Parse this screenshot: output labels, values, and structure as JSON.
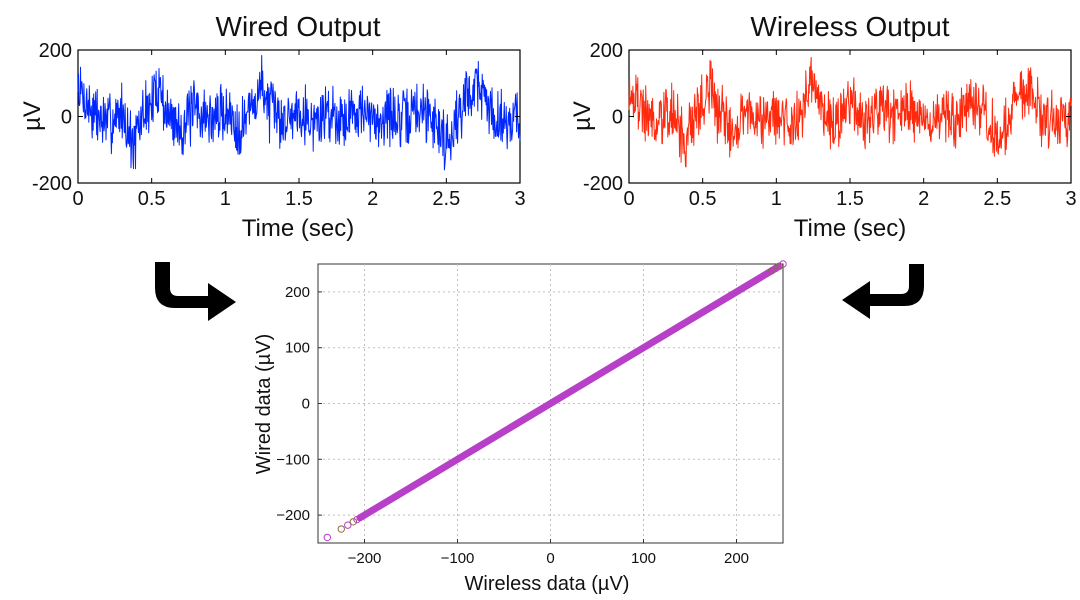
{
  "colors": {
    "wired": "#0026ff",
    "wireless": "#ff2a0e",
    "scatter_main": "#b83fc8",
    "scatter_alt": "#8a6d3b",
    "grid": "#bfbfbf",
    "arrow": "#000000"
  },
  "icons": {
    "left_arrow": "curved-arrow-right-icon",
    "right_arrow": "curved-arrow-left-icon"
  },
  "chart_data": [
    {
      "type": "line",
      "title": "Wired Output",
      "xlabel": "Time (sec)",
      "ylabel": "µV",
      "xlim": [
        0,
        3
      ],
      "ylim": [
        -200,
        200
      ],
      "xticks": [
        "0",
        "0.5",
        "1",
        "1.5",
        "2",
        "2.5",
        "3"
      ],
      "yticks": [
        "-200",
        "0",
        "200"
      ],
      "grid": false,
      "series": [
        {
          "color": "#0026ff",
          "x": [
            0,
            0.1,
            0.2,
            0.3,
            0.38,
            0.45,
            0.5,
            0.55,
            0.6,
            0.7,
            0.8,
            0.9,
            1.0,
            1.1,
            1.2,
            1.25,
            1.3,
            1.4,
            1.5,
            1.6,
            1.7,
            1.8,
            1.9,
            2.0,
            2.1,
            2.2,
            2.3,
            2.4,
            2.5,
            2.55,
            2.6,
            2.65,
            2.72,
            2.8,
            2.9,
            3.0
          ],
          "y": [
            160,
            20,
            -40,
            30,
            -170,
            40,
            60,
            190,
            10,
            -60,
            40,
            -20,
            30,
            -60,
            80,
            180,
            40,
            -30,
            60,
            -40,
            30,
            -10,
            50,
            -40,
            20,
            -30,
            40,
            10,
            -140,
            -60,
            40,
            140,
            180,
            20,
            -20,
            0
          ]
        }
      ]
    },
    {
      "type": "line",
      "title": "Wireless Output",
      "xlabel": "Time (sec)",
      "ylabel": "µV",
      "xlim": [
        0,
        3
      ],
      "ylim": [
        -200,
        200
      ],
      "xticks": [
        "0",
        "0.5",
        "1",
        "1.5",
        "2",
        "2.5",
        "3"
      ],
      "yticks": [
        "-200",
        "0",
        "200"
      ],
      "grid": false,
      "series": [
        {
          "color": "#ff2a0e",
          "x": [
            0,
            0.1,
            0.2,
            0.3,
            0.38,
            0.45,
            0.5,
            0.55,
            0.6,
            0.7,
            0.8,
            0.9,
            1.0,
            1.1,
            1.2,
            1.25,
            1.3,
            1.4,
            1.5,
            1.6,
            1.7,
            1.8,
            1.9,
            2.0,
            2.1,
            2.2,
            2.3,
            2.4,
            2.5,
            2.55,
            2.6,
            2.65,
            2.72,
            2.8,
            2.9,
            3.0
          ],
          "y": [
            160,
            20,
            -40,
            30,
            -170,
            40,
            60,
            190,
            10,
            -60,
            40,
            -20,
            30,
            -60,
            80,
            180,
            40,
            -30,
            60,
            -40,
            30,
            -10,
            50,
            -40,
            20,
            -30,
            40,
            10,
            -140,
            -60,
            40,
            140,
            180,
            20,
            -20,
            0
          ]
        }
      ]
    },
    {
      "type": "scatter",
      "title": "",
      "xlabel": "Wireless data (µV)",
      "ylabel": "Wired data (µV)",
      "xlim": [
        -250,
        250
      ],
      "ylim": [
        -250,
        250
      ],
      "xticks": [
        "−200",
        "−100",
        "0",
        "100",
        "200"
      ],
      "yticks": [
        "−200",
        "−100",
        "0",
        "100",
        "200"
      ],
      "grid": true,
      "fit_line": {
        "x": [
          -205,
          245
        ],
        "y": [
          -205,
          245
        ],
        "color": "#b83fc8"
      },
      "outliers": {
        "x": [
          -240,
          -225,
          -218,
          -212,
          -208,
          238,
          242,
          246,
          250
        ],
        "y": [
          -240,
          -225,
          -218,
          -212,
          -208,
          238,
          242,
          246,
          250
        ]
      }
    }
  ]
}
